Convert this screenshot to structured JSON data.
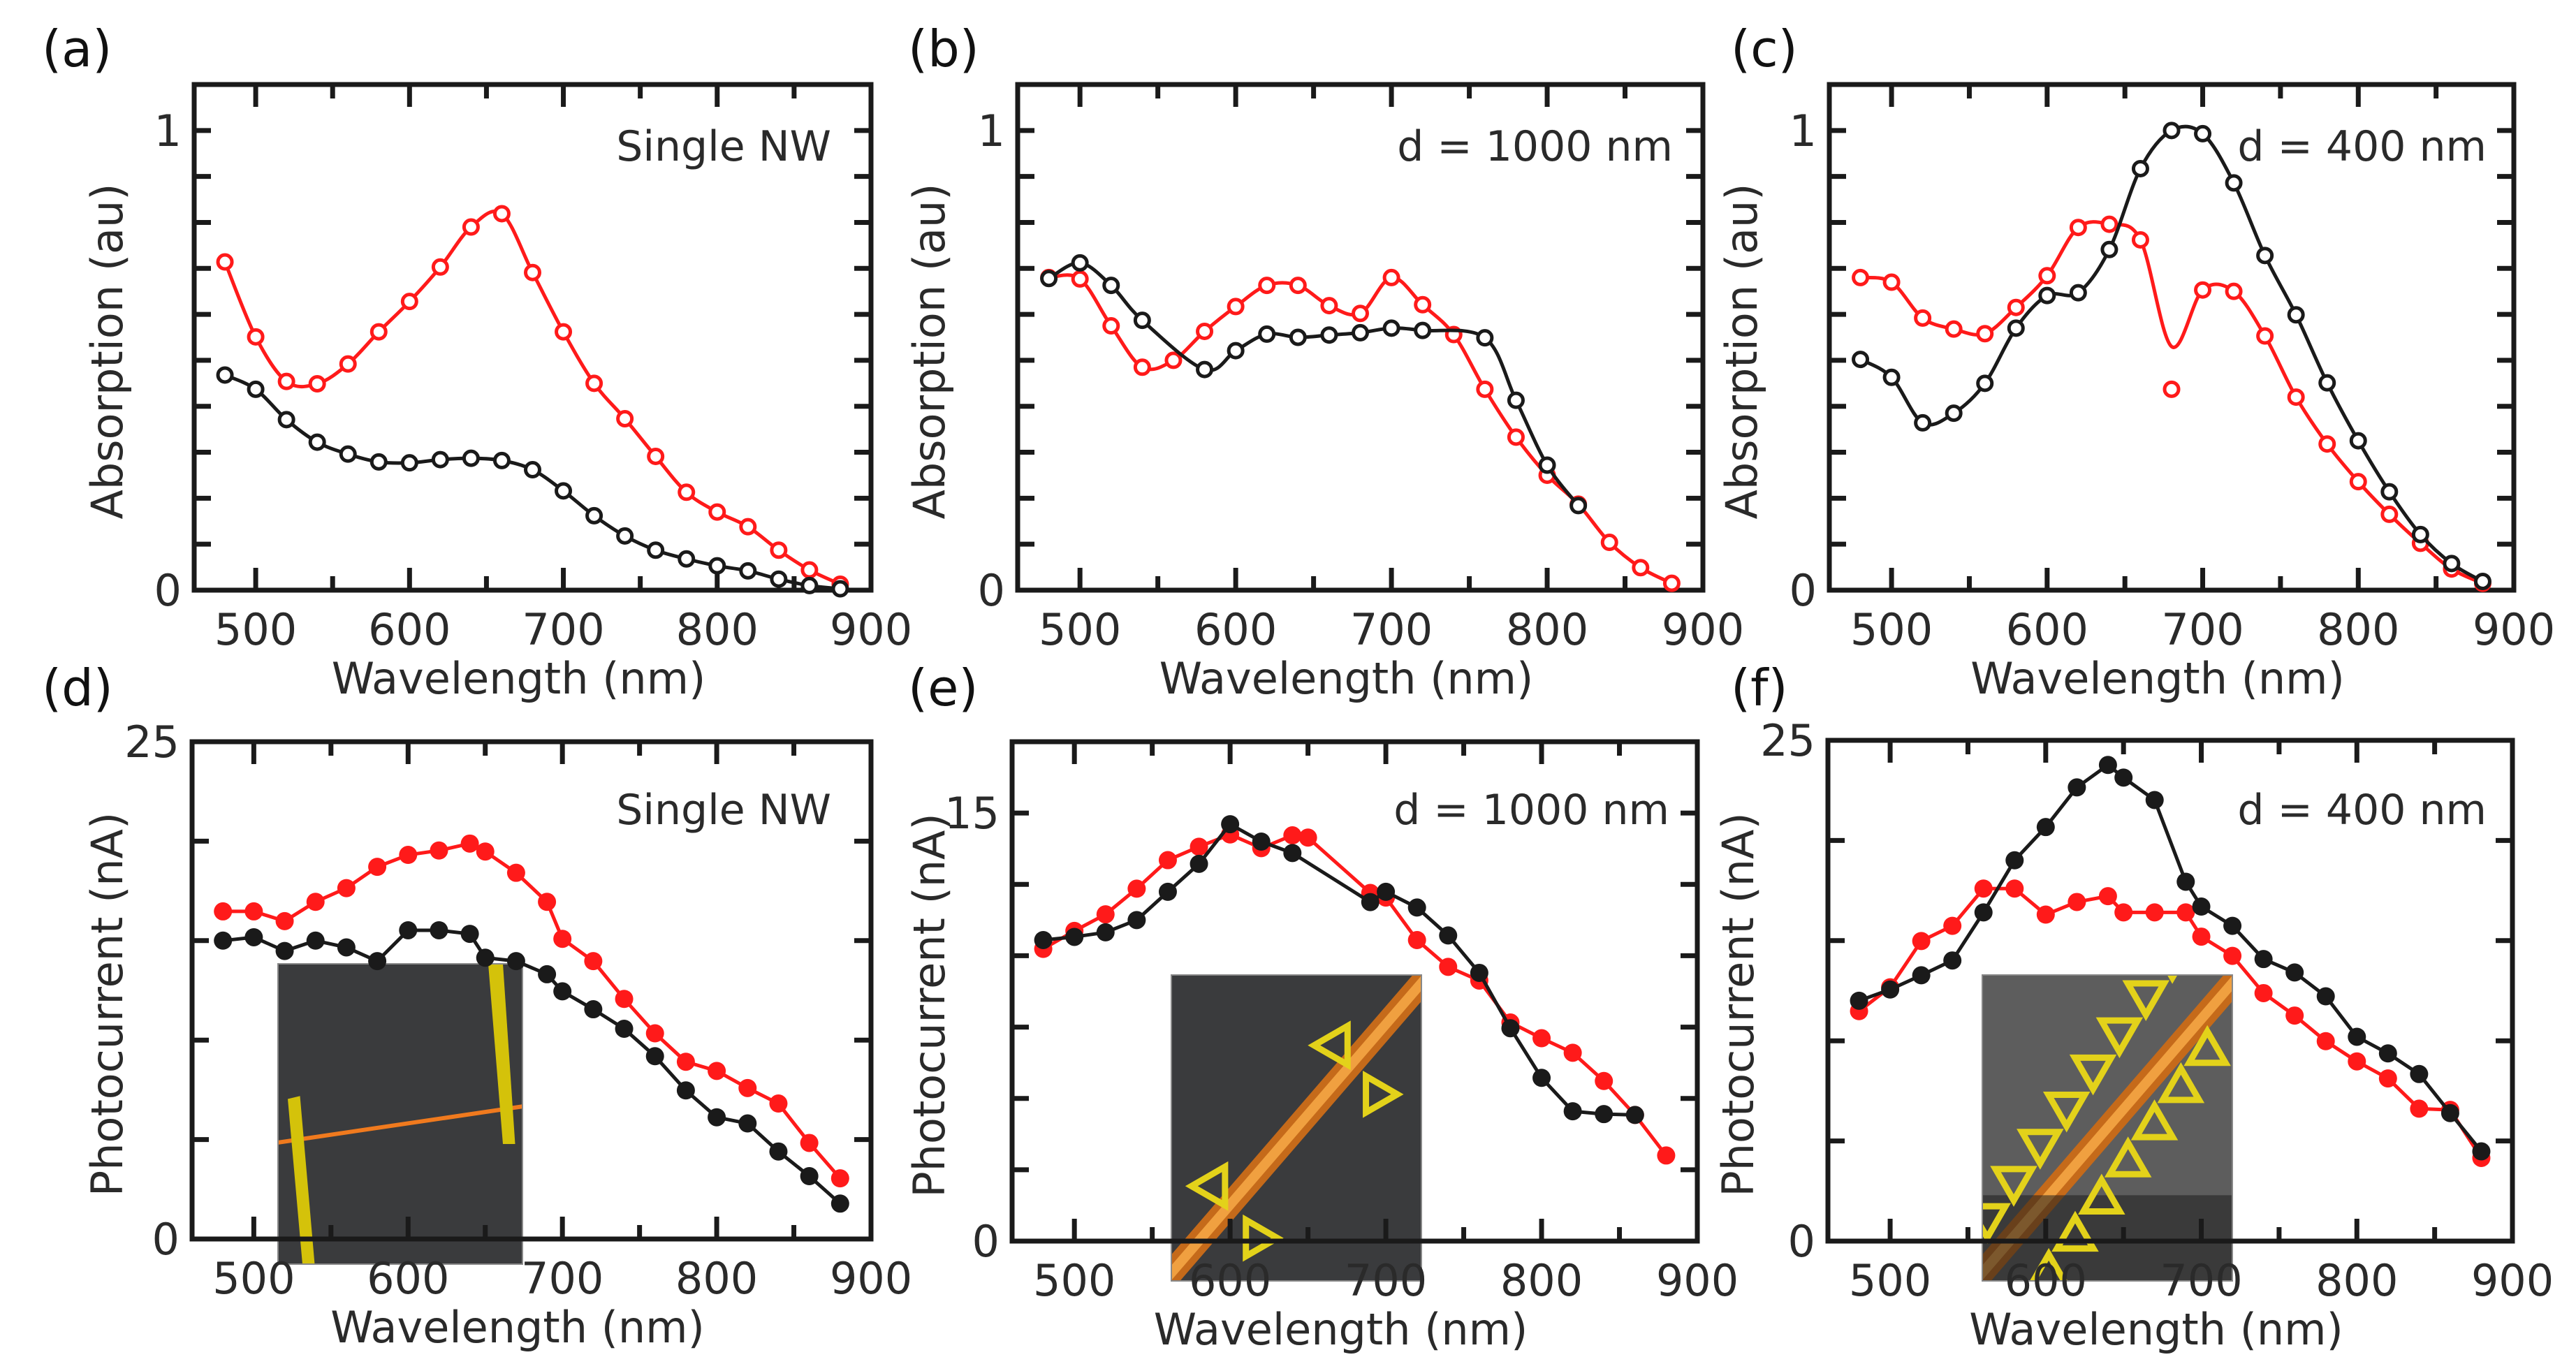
{
  "figure": {
    "colors": {
      "illuminated_red": "#ff1a1a",
      "dark_black": "#1a1a1a",
      "inset_bg": "#3a3b3d",
      "electrode_yellow": "#d4c20a",
      "nanowire_orange": "#f07a1e"
    }
  },
  "chart_data": [
    {
      "id": "a",
      "panel_label": "(a)",
      "type": "line",
      "title": "",
      "annotation": "Single NW",
      "xlabel": "Wavelength (nm)",
      "ylabel": "Absorption (au)",
      "xlim": [
        460,
        900
      ],
      "ylim": [
        0,
        1.1
      ],
      "xticks": [
        500,
        600,
        700,
        800,
        900
      ],
      "xtick_labels": [
        "500",
        "600",
        "700",
        "800",
        "900"
      ],
      "yticks": [
        0,
        1
      ],
      "ytick_labels": [
        "0",
        "1"
      ],
      "yminor_step": 0.1,
      "xminor_step": 50,
      "marker": "open-circle",
      "line_style": "smooth",
      "x": [
        480,
        500,
        520,
        540,
        560,
        580,
        600,
        620,
        640,
        660,
        680,
        700,
        720,
        740,
        760,
        780,
        800,
        820,
        840,
        860,
        880
      ],
      "series": [
        {
          "name": "red",
          "color": "#ff1a1a",
          "values": [
            0.714,
            0.551,
            0.454,
            0.449,
            0.492,
            0.562,
            0.628,
            0.703,
            0.79,
            0.819,
            0.691,
            0.562,
            0.45,
            0.373,
            0.291,
            0.213,
            0.17,
            0.138,
            0.087,
            0.044,
            0.013
          ]
        },
        {
          "name": "black",
          "color": "#1a1a1a",
          "values": [
            0.468,
            0.437,
            0.371,
            0.322,
            0.296,
            0.279,
            0.277,
            0.284,
            0.287,
            0.282,
            0.262,
            0.216,
            0.162,
            0.118,
            0.087,
            0.068,
            0.053,
            0.042,
            0.024,
            0.01,
            0.003
          ]
        }
      ],
      "inset": null
    },
    {
      "id": "b",
      "panel_label": "(b)",
      "type": "line",
      "title": "",
      "annotation": "d = 1000 nm",
      "xlabel": "Wavelength (nm)",
      "ylabel": "Absorption (au)",
      "xlim": [
        460,
        900
      ],
      "ylim": [
        0,
        1.1
      ],
      "xticks": [
        500,
        600,
        700,
        800,
        900
      ],
      "xtick_labels": [
        "500",
        "600",
        "700",
        "800",
        "900"
      ],
      "yticks": [
        0,
        1
      ],
      "ytick_labels": [
        "0",
        "1"
      ],
      "yminor_step": 0.1,
      "xminor_step": 50,
      "marker": "open-circle",
      "line_style": "smooth",
      "x": [
        480,
        500,
        520,
        540,
        560,
        580,
        600,
        620,
        640,
        660,
        680,
        700,
        720,
        740,
        760,
        780,
        800,
        820,
        840,
        860,
        880
      ],
      "series": [
        {
          "name": "red",
          "color": "#ff1a1a",
          "values": [
            0.68,
            0.677,
            0.575,
            0.485,
            0.5,
            0.563,
            0.617,
            0.663,
            0.663,
            0.619,
            0.602,
            0.68,
            0.621,
            0.556,
            0.437,
            0.333,
            0.25,
            0.187,
            0.104,
            0.049,
            0.015
          ]
        },
        {
          "name": "black",
          "color": "#1a1a1a",
          "x": [
            480,
            500,
            520,
            540,
            580,
            600,
            620,
            640,
            660,
            680,
            700,
            720,
            760,
            780,
            800,
            820
          ],
          "values": [
            0.678,
            0.712,
            0.663,
            0.587,
            0.48,
            0.521,
            0.557,
            0.55,
            0.555,
            0.56,
            0.57,
            0.565,
            0.549,
            0.413,
            0.272,
            0.184
          ]
        }
      ],
      "inset": null
    },
    {
      "id": "c",
      "panel_label": "(c)",
      "type": "line",
      "title": "",
      "annotation": "d = 400 nm",
      "xlabel": "Wavelength (nm)",
      "ylabel": "Absorption (au)",
      "xlim": [
        460,
        900
      ],
      "ylim": [
        0,
        1.1
      ],
      "xticks": [
        500,
        600,
        700,
        800,
        900
      ],
      "xtick_labels": [
        "500",
        "600",
        "700",
        "800",
        "900"
      ],
      "yticks": [
        0,
        1
      ],
      "ytick_labels": [
        "0",
        "1"
      ],
      "yminor_step": 0.1,
      "xminor_step": 50,
      "marker": "open-circle",
      "line_style": "smooth",
      "x": [
        480,
        500,
        520,
        540,
        560,
        580,
        600,
        620,
        640,
        660,
        680,
        700,
        720,
        740,
        760,
        780,
        800,
        820,
        840,
        860,
        880
      ],
      "series": [
        {
          "name": "red",
          "color": "#ff1a1a",
          "values": [
            0.68,
            0.67,
            0.592,
            0.568,
            0.558,
            0.615,
            0.684,
            0.789,
            0.796,
            0.762,
            0.437,
            0.653,
            0.65,
            0.553,
            0.42,
            0.318,
            0.236,
            0.165,
            0.102,
            0.046,
            0.015
          ],
          "fit_dip_at_680": 0.53
        },
        {
          "name": "black",
          "color": "#1a1a1a",
          "values": [
            0.502,
            0.463,
            0.364,
            0.385,
            0.45,
            0.57,
            0.641,
            0.647,
            0.741,
            0.917,
            1.0,
            0.993,
            0.886,
            0.728,
            0.599,
            0.451,
            0.325,
            0.214,
            0.121,
            0.058,
            0.019
          ]
        }
      ],
      "inset": null
    },
    {
      "id": "d",
      "panel_label": "(d)",
      "type": "line",
      "title": "",
      "annotation": "Single NW",
      "xlabel": "Wavelength (nm)",
      "ylabel": "Photocurrent (nA)",
      "xlim": [
        460,
        900
      ],
      "ylim": [
        0,
        25
      ],
      "xticks": [
        500,
        600,
        700,
        800,
        900
      ],
      "xtick_labels": [
        "500",
        "600",
        "700",
        "800",
        "900"
      ],
      "yticks": [
        0,
        25
      ],
      "ytick_labels": [
        "0",
        "25"
      ],
      "yminor_step": 5,
      "xminor_step": 50,
      "marker": "filled-circle",
      "line_style": "straight",
      "x": [
        480,
        500,
        520,
        540,
        560,
        580,
        600,
        620,
        640,
        650,
        670,
        690,
        700,
        720,
        740,
        760,
        780,
        800,
        820,
        840,
        860,
        880
      ],
      "series": [
        {
          "name": "red",
          "color": "#ff1a1a",
          "values": [
            16.47,
            16.47,
            15.98,
            16.95,
            17.64,
            18.71,
            19.31,
            19.53,
            19.88,
            19.48,
            18.41,
            16.95,
            15.09,
            13.97,
            12.07,
            10.34,
            8.91,
            8.45,
            7.59,
            6.81,
            4.83,
            3.05
          ]
        },
        {
          "name": "black",
          "color": "#1a1a1a",
          "values": [
            15.0,
            15.17,
            14.48,
            15.0,
            14.66,
            13.97,
            15.52,
            15.52,
            15.34,
            14.14,
            13.97,
            13.31,
            12.45,
            11.55,
            10.57,
            9.19,
            7.47,
            6.12,
            5.81,
            4.4,
            3.16,
            1.78
          ]
        }
      ],
      "inset": {
        "description": "SEM image: single nanowire between two electrodes",
        "kind": "single-nw"
      }
    },
    {
      "id": "e",
      "panel_label": "(e)",
      "type": "line",
      "title": "",
      "annotation": "d = 1000 nm",
      "xlabel": "Wavelength (nm)",
      "ylabel": "Photocurrent (nA)",
      "xlim": [
        460,
        900
      ],
      "ylim": [
        0,
        17.5
      ],
      "xticks": [
        500,
        600,
        700,
        800,
        900
      ],
      "xtick_labels": [
        "500",
        "600",
        "700",
        "800",
        "900"
      ],
      "yticks": [
        0,
        15
      ],
      "ytick_labels": [
        "0",
        "15"
      ],
      "yminor_step": 2.5,
      "xminor_step": 50,
      "marker": "filled-circle",
      "line_style": "straight",
      "x": [
        480,
        500,
        520,
        540,
        560,
        580,
        600,
        620,
        640,
        650,
        690,
        700,
        720,
        740,
        760,
        780,
        800,
        820,
        840,
        860,
        880
      ],
      "series": [
        {
          "name": "red",
          "color": "#ff1a1a",
          "values": [
            10.24,
            10.87,
            11.45,
            12.35,
            13.35,
            13.82,
            14.25,
            13.77,
            14.22,
            14.14,
            12.2,
            12.04,
            10.55,
            9.61,
            9.13,
            7.66,
            7.11,
            6.6,
            5.61,
            4.42,
            3.0
          ]
        },
        {
          "name": "black",
          "color": "#1a1a1a",
          "x": [
            480,
            500,
            520,
            540,
            560,
            580,
            600,
            620,
            640,
            690,
            700,
            720,
            740,
            760,
            780,
            800,
            820,
            840,
            860
          ],
          "values": [
            10.55,
            10.66,
            10.82,
            11.25,
            12.24,
            13.22,
            14.61,
            14.0,
            13.6,
            11.88,
            12.24,
            11.69,
            10.71,
            9.4,
            7.46,
            5.72,
            4.55,
            4.45,
            4.42
          ]
        }
      ],
      "inset": {
        "description": "SEM image: nanowire with sparse gold nanotriangles",
        "kind": "sparse-triangles"
      }
    },
    {
      "id": "f",
      "panel_label": "(f)",
      "type": "line",
      "title": "",
      "annotation": "d = 400 nm",
      "xlabel": "Wavelength (nm)",
      "ylabel": "Photocurrent (nA)",
      "xlim": [
        460,
        900
      ],
      "ylim": [
        0,
        25
      ],
      "xticks": [
        500,
        600,
        700,
        800,
        900
      ],
      "xtick_labels": [
        "500",
        "600",
        "700",
        "800",
        "900"
      ],
      "yticks": [
        0,
        25
      ],
      "ytick_labels": [
        "0",
        "25"
      ],
      "yminor_step": 5,
      "xminor_step": 50,
      "marker": "filled-circle",
      "line_style": "straight",
      "x": [
        480,
        500,
        520,
        540,
        560,
        580,
        600,
        620,
        640,
        650,
        670,
        690,
        700,
        720,
        740,
        760,
        780,
        800,
        820,
        840,
        860,
        880
      ],
      "series": [
        {
          "name": "red",
          "color": "#ff1a1a",
          "values": [
            11.48,
            12.67,
            14.98,
            15.74,
            17.6,
            17.6,
            16.3,
            16.93,
            17.22,
            16.41,
            16.41,
            16.41,
            15.2,
            14.24,
            12.38,
            11.26,
            9.98,
            8.97,
            8.12,
            6.61,
            6.55,
            4.15
          ]
        },
        {
          "name": "black",
          "color": "#1a1a1a",
          "values": [
            12.0,
            12.56,
            13.27,
            14.01,
            16.41,
            19.01,
            20.67,
            22.65,
            23.77,
            23.14,
            22.02,
            17.94,
            16.7,
            15.74,
            14.08,
            13.41,
            12.22,
            10.2,
            9.37,
            8.34,
            6.39,
            4.48
          ]
        }
      ],
      "inset": {
        "description": "SEM image: nanowire with dense rows of gold nanotriangles",
        "kind": "dense-triangles"
      }
    }
  ]
}
